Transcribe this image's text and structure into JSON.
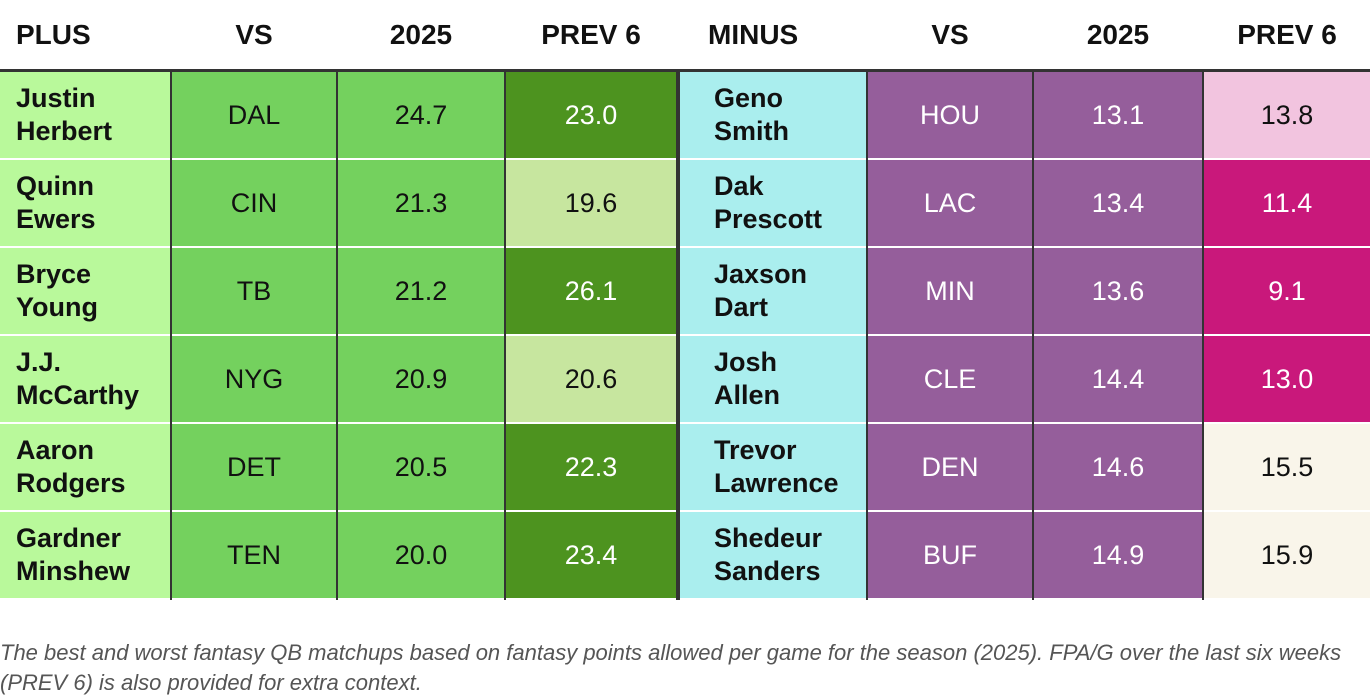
{
  "chart_data": {
    "type": "table",
    "columns": [
      "PLUS",
      "VS",
      "2025",
      "PREV 6",
      "MINUS",
      "VS",
      "2025",
      "PREV 6"
    ],
    "plus_rows": [
      {
        "first": "Justin",
        "last": "Herbert",
        "vs": "DAL",
        "y2025": "24.7",
        "prev6": "23.0",
        "prev6_color": "#4d931f",
        "prev6_text": "#ffffff"
      },
      {
        "first": "Quinn",
        "last": "Ewers",
        "vs": "CIN",
        "y2025": "21.3",
        "prev6": "19.6",
        "prev6_color": "#c7e69f",
        "prev6_text": "#111111"
      },
      {
        "first": "Bryce",
        "last": "Young",
        "vs": "TB",
        "y2025": "21.2",
        "prev6": "26.1",
        "prev6_color": "#4d931f",
        "prev6_text": "#ffffff"
      },
      {
        "first": "J.J.",
        "last": "McCarthy",
        "vs": "NYG",
        "y2025": "20.9",
        "prev6": "20.6",
        "prev6_color": "#c7e69f",
        "prev6_text": "#111111"
      },
      {
        "first": "Aaron",
        "last": "Rodgers",
        "vs": "DET",
        "y2025": "20.5",
        "prev6": "22.3",
        "prev6_color": "#4d931f",
        "prev6_text": "#ffffff"
      },
      {
        "first": "Gardner",
        "last": "Minshew",
        "vs": "TEN",
        "y2025": "20.0",
        "prev6": "23.4",
        "prev6_color": "#4d931f",
        "prev6_text": "#ffffff"
      }
    ],
    "minus_rows": [
      {
        "first": "Geno",
        "last": "Smith",
        "vs": "HOU",
        "y2025": "13.1",
        "prev6": "13.8",
        "prev6_color": "#f2c4df",
        "prev6_text": "#111111"
      },
      {
        "first": "Dak",
        "last": "Prescott",
        "vs": "LAC",
        "y2025": "13.4",
        "prev6": "11.4",
        "prev6_color": "#c9187b",
        "prev6_text": "#ffffff"
      },
      {
        "first": "Jaxson",
        "last": "Dart",
        "vs": "MIN",
        "y2025": "13.6",
        "prev6": "9.1",
        "prev6_color": "#c9187b",
        "prev6_text": "#ffffff"
      },
      {
        "first": "Josh",
        "last": "Allen",
        "vs": "CLE",
        "y2025": "14.4",
        "prev6": "13.0",
        "prev6_color": "#c9187b",
        "prev6_text": "#ffffff"
      },
      {
        "first": "Trevor",
        "last": "Lawrence",
        "vs": "DEN",
        "y2025": "14.6",
        "prev6": "15.5",
        "prev6_color": "#f9f5ea",
        "prev6_text": "#111111"
      },
      {
        "first": "Shedeur",
        "last": "Sanders",
        "vs": "BUF",
        "y2025": "14.9",
        "prev6": "15.9",
        "prev6_color": "#f9f5ea",
        "prev6_text": "#111111"
      }
    ],
    "colors": {
      "plus_name": "#b9f99b",
      "plus_vs": "#74d15e",
      "plus_2025": "#74d15e",
      "minus_name": "#aaeeee",
      "minus_vs": "#955e9b",
      "minus_2025": "#955e9b"
    }
  },
  "caption": "The best and worst fantasy QB matchups based on fantasy points allowed per game for the season (2025). FPA/G over the last six weeks (PREV 6) is also provided for extra context."
}
